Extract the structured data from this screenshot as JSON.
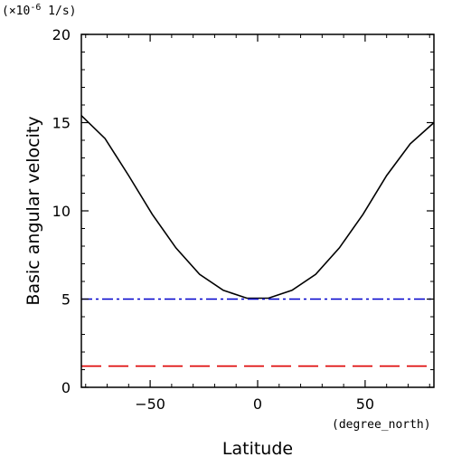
{
  "chart_data": {
    "type": "line",
    "xlabel": "Latitude",
    "xunit": "(degree_north)",
    "ylabel": "Basic angular velocity",
    "yunit_prefix": "(×10",
    "yunit_exp": "-6",
    "yunit_suffix": " 1/s)",
    "xlim": [
      -82,
      82
    ],
    "ylim": [
      0,
      20
    ],
    "xticks": [
      -50,
      0,
      50
    ],
    "xtick_labels": [
      "−50",
      "0",
      "50"
    ],
    "yticks": [
      0,
      5,
      10,
      15,
      20
    ],
    "ytick_labels": [
      "0",
      "5",
      "10",
      "15",
      "20"
    ],
    "grid": false,
    "series": [
      {
        "color": "#000000",
        "dash": "solid",
        "x": [
          -82,
          -71,
          -60,
          -49,
          -38,
          -27,
          -16,
          -5,
          5,
          16,
          27,
          38,
          49,
          60,
          71,
          82
        ],
        "y": [
          15.4,
          14.1,
          12.0,
          9.8,
          7.9,
          6.4,
          5.5,
          5.05,
          5.05,
          5.5,
          6.4,
          7.9,
          9.8,
          12.0,
          13.8,
          15.0
        ]
      },
      {
        "color": "#0000cc",
        "dash": "dashdot",
        "x": [
          -82,
          82
        ],
        "y": [
          5.0,
          5.0
        ]
      },
      {
        "color": "#dd0000",
        "dash": "dashed",
        "x": [
          -82,
          82
        ],
        "y": [
          1.2,
          1.2
        ]
      }
    ]
  }
}
